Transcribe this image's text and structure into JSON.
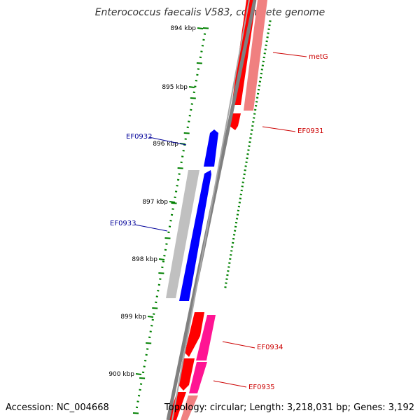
{
  "title": "Enterococcus faecalis V583, complete genome",
  "footer": {
    "accession": "Accession: NC_004668",
    "summary": "Topology: circular; Length: 3,218,031 bp; Genes: 3,192"
  },
  "colors": {
    "forward_gene": "#ff0000",
    "forward_gene_light": "#f08080",
    "reverse_gene": "#0000ff",
    "reverse_gene_light": "#c0c0c0",
    "pink_gene": "#ff1493",
    "backbone": "#808080",
    "tick": "#008000",
    "forward_label": "#cc0000",
    "reverse_label": "#000099"
  },
  "scale_labels": [
    "894 kbp",
    "895 kbp",
    "896 kbp",
    "897 kbp",
    "898 kbp",
    "899 kbp",
    "900 kbp"
  ],
  "gene_labels": [
    {
      "name": "metG",
      "strand": "forward"
    },
    {
      "name": "EF0931",
      "strand": "forward"
    },
    {
      "name": "EF0932",
      "strand": "reverse"
    },
    {
      "name": "EF0933",
      "strand": "reverse"
    },
    {
      "name": "EF0934",
      "strand": "forward"
    },
    {
      "name": "EF0935",
      "strand": "forward"
    }
  ]
}
